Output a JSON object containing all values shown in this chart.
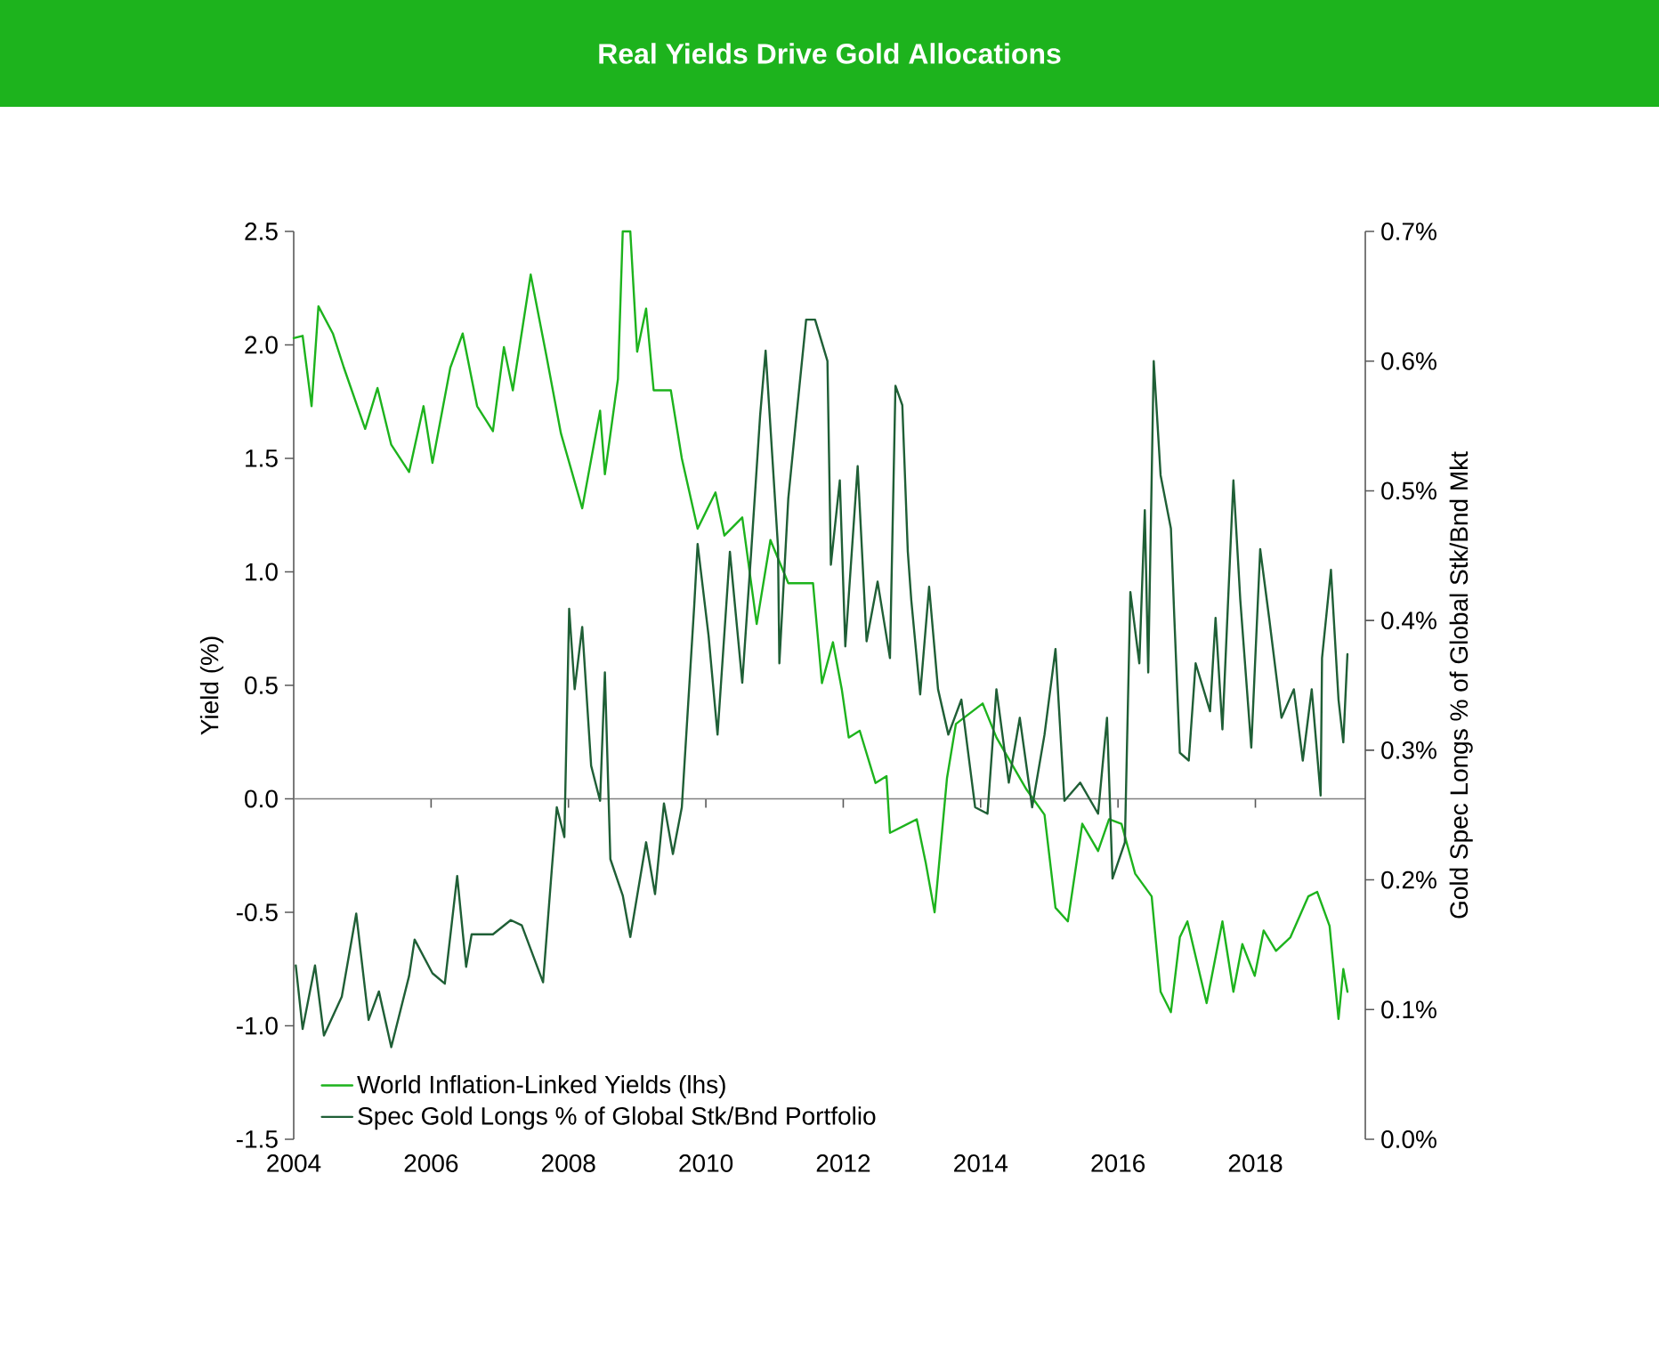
{
  "chart_data": {
    "type": "line",
    "title": "Real Yields Drive Gold Allocations",
    "ylabel": "Yield (%)",
    "y2label": "Gold Spec Longs % of Global  Stk/Bnd Mkt",
    "xlim": [
      2004,
      2019.6
    ],
    "xticks": [
      2004,
      2006,
      2008,
      2010,
      2012,
      2014,
      2016,
      2018
    ],
    "ylim": [
      -1.5,
      2.5
    ],
    "yticks": [
      {
        "value": -1.5,
        "label": "-1.5"
      },
      {
        "value": -1.0,
        "label": "-1.0"
      },
      {
        "value": -0.5,
        "label": "-0.5"
      },
      {
        "value": 0.0,
        "label": "0.0"
      },
      {
        "value": 0.5,
        "label": "0.5"
      },
      {
        "value": 1.0,
        "label": "1.0"
      },
      {
        "value": 1.5,
        "label": "1.5"
      },
      {
        "value": 2.0,
        "label": "2.0"
      },
      {
        "value": 2.5,
        "label": "2.5"
      }
    ],
    "y2lim": [
      0,
      0.7
    ],
    "y2ticks": [
      {
        "value": 0,
        "label": "0.0%"
      },
      {
        "value": 0.1,
        "label": "0.1%"
      },
      {
        "value": 0.2,
        "label": "0.2%"
      },
      {
        "value": 0.3,
        "label": "0.3%"
      },
      {
        "value": 0.4,
        "label": "0.4%"
      },
      {
        "value": 0.5,
        "label": "0.5%"
      },
      {
        "value": 0.6,
        "label": "0.6%"
      },
      {
        "value": 0.7,
        "label": "0.7%"
      }
    ],
    "ref_lines": [
      {
        "axis": "y",
        "value": 0,
        "color": "#7f7f7f"
      }
    ],
    "legend": "bottom left",
    "grid": false,
    "marker": "none",
    "line_style": "solid",
    "series": [
      {
        "name": "World Inflation-Linked Yields (lhs)",
        "color": "#1db31d",
        "axis": "y",
        "x": [
          2004.0,
          2004.13,
          2004.26,
          2004.36,
          2004.57,
          2004.73,
          2005.04,
          2005.22,
          2005.42,
          2005.68,
          2005.89,
          2006.02,
          2006.28,
          2006.46,
          2006.67,
          2006.9,
          2007.06,
          2007.19,
          2007.45,
          2007.68,
          2007.89,
          2008.2,
          2008.46,
          2008.53,
          2008.72,
          2008.79,
          2008.9,
          2009.0,
          2009.13,
          2009.24,
          2009.49,
          2009.65,
          2009.88,
          2010.14,
          2010.27,
          2010.53,
          2010.74,
          2010.94,
          2011.2,
          2011.38,
          2011.56,
          2011.69,
          2011.85,
          2011.98,
          2012.08,
          2012.24,
          2012.47,
          2012.63,
          2012.68,
          2013.07,
          2013.2,
          2013.33,
          2013.51,
          2013.64,
          2014.03,
          2014.23,
          2014.67,
          2014.93,
          2015.09,
          2015.27,
          2015.48,
          2015.71,
          2015.87,
          2016.05,
          2016.25,
          2016.49,
          2016.62,
          2016.77,
          2016.9,
          2017.01,
          2017.29,
          2017.52,
          2017.68,
          2017.81,
          2017.99,
          2018.12,
          2018.3,
          2018.51,
          2018.77,
          2018.9,
          2019.08,
          2019.21,
          2019.28,
          2019.34
        ],
        "values": [
          2.03,
          2.04,
          1.73,
          2.17,
          2.05,
          1.9,
          1.63,
          1.81,
          1.56,
          1.44,
          1.73,
          1.48,
          1.9,
          2.05,
          1.73,
          1.62,
          1.99,
          1.8,
          2.31,
          1.95,
          1.61,
          1.28,
          1.71,
          1.43,
          1.85,
          2.5,
          2.5,
          1.97,
          2.16,
          1.8,
          1.8,
          1.5,
          1.19,
          1.35,
          1.16,
          1.24,
          0.77,
          1.14,
          0.95,
          0.95,
          0.95,
          0.51,
          0.69,
          0.48,
          0.27,
          0.3,
          0.07,
          0.1,
          -0.15,
          -0.09,
          -0.28,
          -0.5,
          0.09,
          0.33,
          0.42,
          0.27,
          0.04,
          -0.07,
          -0.48,
          -0.54,
          -0.11,
          -0.23,
          -0.09,
          -0.11,
          -0.33,
          -0.43,
          -0.85,
          -0.94,
          -0.61,
          -0.54,
          -0.9,
          -0.54,
          -0.85,
          -0.64,
          -0.78,
          -0.58,
          -0.67,
          -0.61,
          -0.43,
          -0.41,
          -0.56,
          -0.97,
          -0.75,
          -0.85
        ]
      },
      {
        "name": "Spec Gold Longs % of Global Stk/Bnd Portfolio",
        "color": "#1f5f36",
        "axis": "y2",
        "x": [
          2004.03,
          2004.13,
          2004.31,
          2004.44,
          2004.7,
          2004.91,
          2005.09,
          2005.24,
          2005.42,
          2005.68,
          2005.76,
          2006.02,
          2006.2,
          2006.38,
          2006.51,
          2006.59,
          2006.9,
          2007.16,
          2007.32,
          2007.63,
          2007.76,
          2007.83,
          2007.94,
          2008.01,
          2008.09,
          2008.2,
          2008.33,
          2008.46,
          2008.53,
          2008.61,
          2008.79,
          2008.9,
          2009.13,
          2009.26,
          2009.39,
          2009.52,
          2009.65,
          2009.83,
          2009.88,
          2010.04,
          2010.17,
          2010.35,
          2010.53,
          2010.66,
          2010.79,
          2010.87,
          2011.05,
          2011.07,
          2011.2,
          2011.31,
          2011.46,
          2011.59,
          2011.77,
          2011.82,
          2011.95,
          2012.03,
          2012.21,
          2012.34,
          2012.5,
          2012.68,
          2012.76,
          2012.86,
          2012.94,
          2012.99,
          2013.12,
          2013.25,
          2013.38,
          2013.53,
          2013.72,
          2013.92,
          2014.1,
          2014.23,
          2014.41,
          2014.57,
          2014.75,
          2014.93,
          2015.09,
          2015.22,
          2015.45,
          2015.71,
          2015.84,
          2015.92,
          2016.1,
          2016.18,
          2016.31,
          2016.39,
          2016.44,
          2016.52,
          2016.62,
          2016.77,
          2016.82,
          2016.9,
          2017.03,
          2017.13,
          2017.34,
          2017.42,
          2017.52,
          2017.68,
          2017.78,
          2017.94,
          2018.07,
          2018.2,
          2018.38,
          2018.56,
          2018.69,
          2018.82,
          2018.95,
          2018.97,
          2019.1,
          2019.21,
          2019.28,
          2019.34
        ],
        "values": [
          0.134,
          0.085,
          0.134,
          0.08,
          0.11,
          0.174,
          0.092,
          0.114,
          0.071,
          0.126,
          0.154,
          0.128,
          0.12,
          0.203,
          0.133,
          0.158,
          0.158,
          0.169,
          0.165,
          0.121,
          0.21,
          0.256,
          0.233,
          0.409,
          0.347,
          0.395,
          0.288,
          0.261,
          0.36,
          0.216,
          0.188,
          0.156,
          0.229,
          0.189,
          0.259,
          0.22,
          0.256,
          0.411,
          0.459,
          0.388,
          0.312,
          0.453,
          0.352,
          0.453,
          0.558,
          0.608,
          0.457,
          0.367,
          0.494,
          0.553,
          0.632,
          0.632,
          0.6,
          0.443,
          0.508,
          0.38,
          0.519,
          0.384,
          0.43,
          0.371,
          0.581,
          0.566,
          0.453,
          0.416,
          0.343,
          0.426,
          0.347,
          0.312,
          0.339,
          0.256,
          0.251,
          0.347,
          0.275,
          0.325,
          0.256,
          0.312,
          0.378,
          0.261,
          0.275,
          0.251,
          0.325,
          0.201,
          0.229,
          0.422,
          0.367,
          0.485,
          0.36,
          0.6,
          0.512,
          0.471,
          0.402,
          0.298,
          0.292,
          0.367,
          0.33,
          0.402,
          0.316,
          0.508,
          0.416,
          0.302,
          0.455,
          0.402,
          0.325,
          0.347,
          0.292,
          0.347,
          0.265,
          0.371,
          0.439,
          0.339,
          0.306,
          0.374
        ]
      }
    ]
  }
}
